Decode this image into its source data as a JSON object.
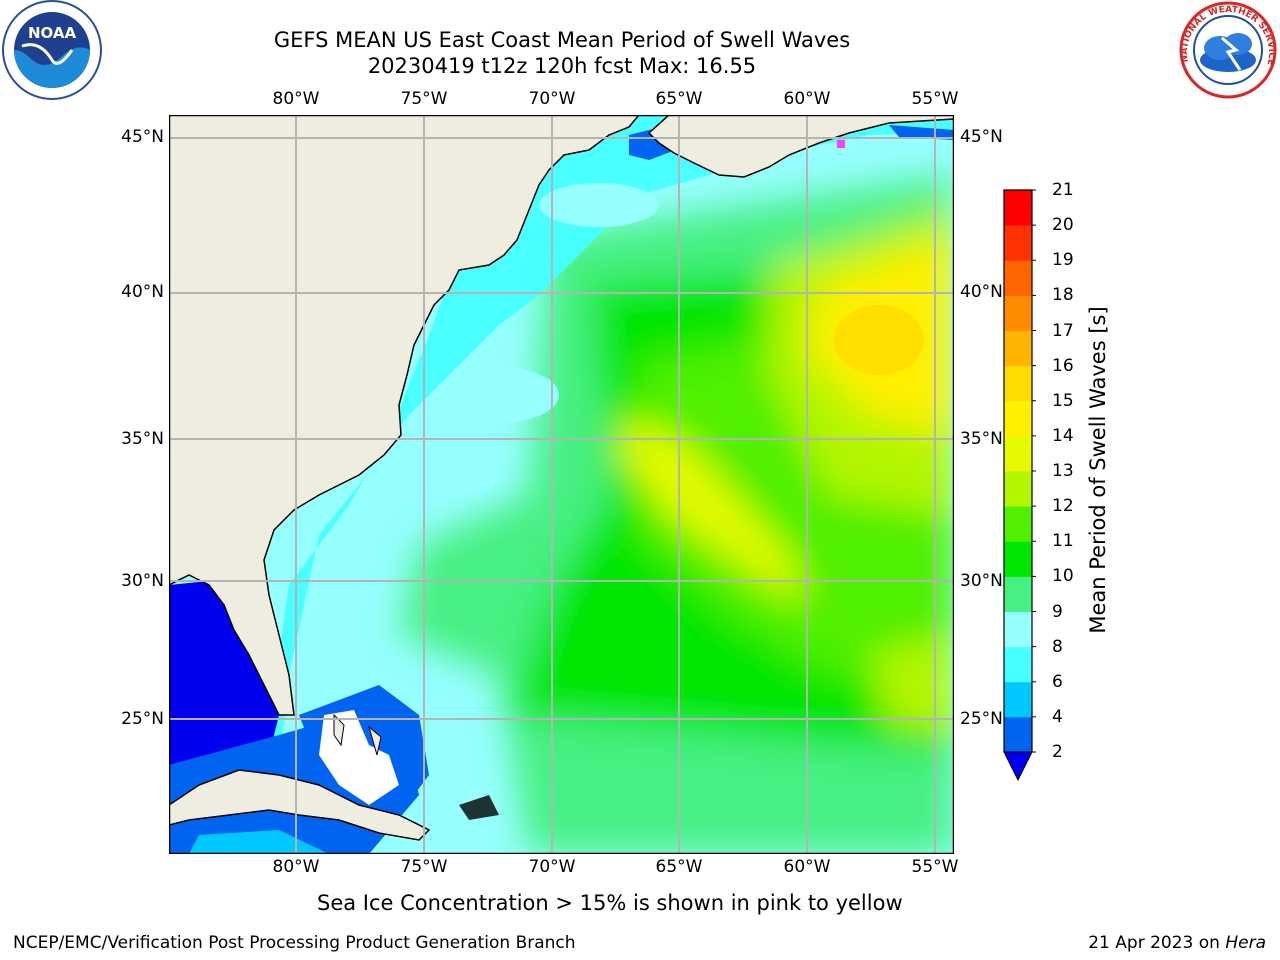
{
  "header": {
    "title_line1": "GEFS MEAN US East Coast Mean Period of Swell Waves",
    "title_line2": "20230419 t12z 120h fcst   Max: 16.55"
  },
  "map": {
    "lon_labels": [
      "80°W",
      "75°W",
      "70°W",
      "65°W",
      "60°W",
      "55°W"
    ],
    "lat_labels": [
      "45°N",
      "40°N",
      "35°N",
      "30°N",
      "25°N"
    ],
    "extent": {
      "lon_min": -85,
      "lon_max": -54.2,
      "lat_min": 20.3,
      "lat_max": 45.8
    },
    "colors": {
      "land": "#eeeddf",
      "grid": "#b4b4b4",
      "coast": "#000000"
    }
  },
  "colorbar": {
    "title": "Mean Period of Swell Waves [s]",
    "ticks": [
      "2",
      "4",
      "6",
      "8",
      "9",
      "10",
      "11",
      "12",
      "13",
      "14",
      "15",
      "16",
      "17",
      "18",
      "19",
      "20",
      "21"
    ],
    "colors": [
      "#0064f0",
      "#00c8ff",
      "#46ffff",
      "#96ffff",
      "#46f082",
      "#00e600",
      "#50f000",
      "#b4f500",
      "#e6fa00",
      "#fff000",
      "#ffdc00",
      "#ffb400",
      "#ff8c00",
      "#ff6400",
      "#ff3200",
      "#ff0000"
    ],
    "under_color": "#0000f0"
  },
  "annotation": {
    "ice_note": "Sea Ice Concentration > 15% is shown in pink to yellow"
  },
  "footer": {
    "left": "NCEP/EMC/Verification Post Processing Product Generation Branch",
    "right_prefix": "21 Apr 2023 on ",
    "right_machine": "Hera"
  },
  "logos": {
    "noaa_text": "NOAA",
    "nws_text": "NATIONAL WEATHER SERVICE"
  }
}
